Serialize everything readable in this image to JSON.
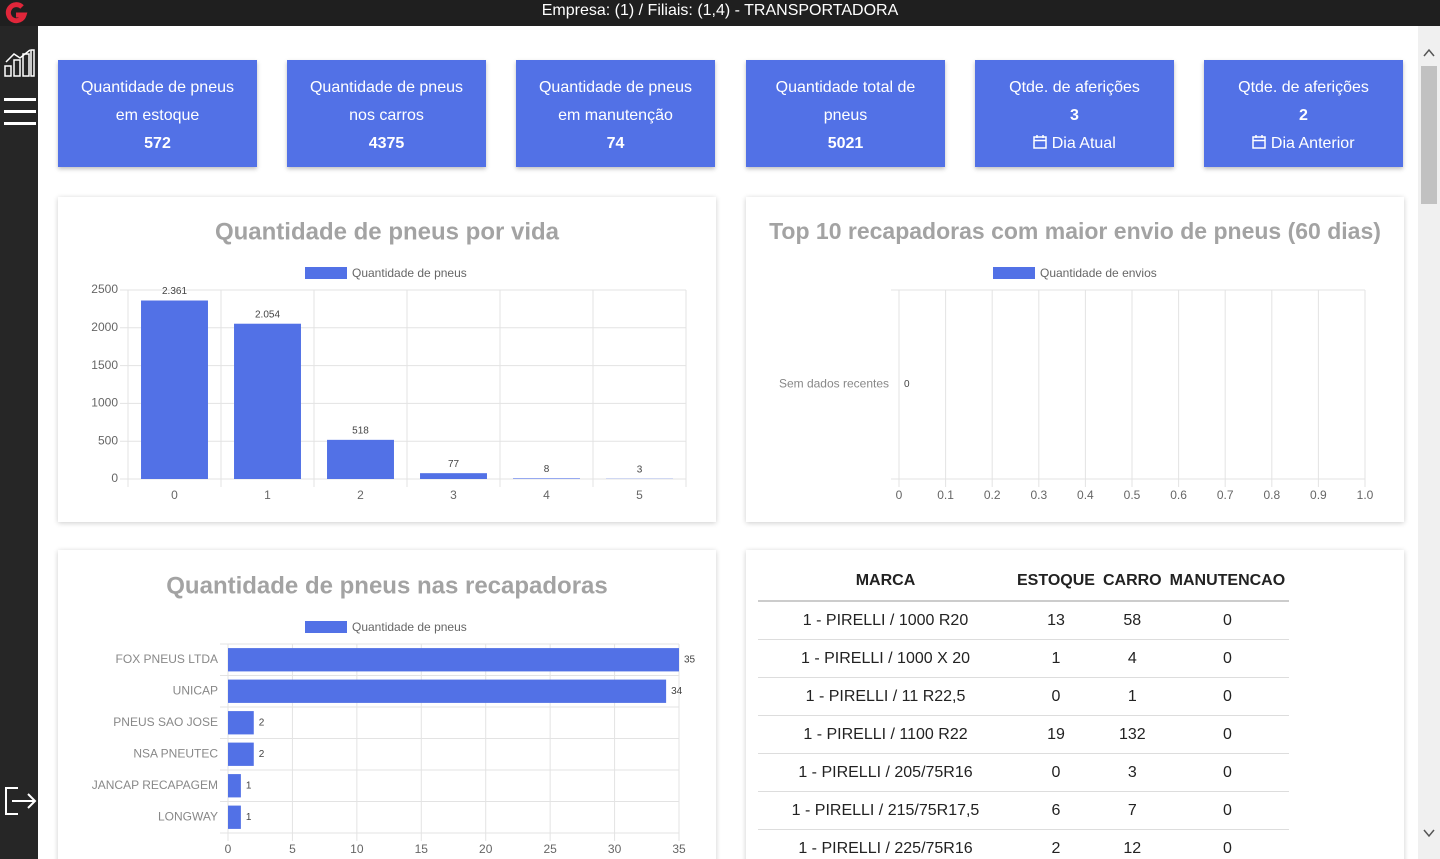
{
  "header": {
    "title": "Empresa: (1) / Filiais: (1,4) -  TRANSPORTADORA"
  },
  "cards": [
    {
      "label": "Quantidade de pneus em estoque",
      "value": 572
    },
    {
      "label": "Quantidade de pneus nos carros",
      "value": 4375
    },
    {
      "label": "Quantidade de pneus em manutenção",
      "value": 74
    },
    {
      "label": "Quantidade total de pneus",
      "value": 5021
    },
    {
      "label": "Qtde. de aferições",
      "value": 3,
      "note": "Dia Atual"
    },
    {
      "label": "Qtde. de aferições",
      "value": 2,
      "note": "Dia Anterior"
    }
  ],
  "chart_data": [
    {
      "type": "bar",
      "title": "Quantidade de pneus por vida",
      "categories": [
        "0",
        "1",
        "2",
        "3",
        "4",
        "5"
      ],
      "series": [
        {
          "name": "Quantidade de pneus",
          "color": "#5271e6",
          "values": [
            2361,
            2054,
            518,
            77,
            8,
            3
          ],
          "value_labels": [
            "2.361",
            "2.054",
            "518",
            "77",
            "8",
            "3"
          ]
        }
      ],
      "ylim": [
        0,
        2500
      ],
      "yticks": [
        0,
        500,
        1000,
        1500,
        2000,
        2500
      ],
      "grid": true,
      "legend": "top"
    },
    {
      "type": "barh",
      "title": "Top 10 recapadoras com maior envio de pneus (60 dias)",
      "categories": [
        "Sem dados recentes"
      ],
      "series": [
        {
          "name": "Quantidade de envios",
          "color": "#5271e6",
          "values": [
            0
          ]
        }
      ],
      "xlim": [
        0,
        1
      ],
      "xticks": [
        0,
        0.1,
        0.2,
        0.3,
        0.4,
        0.5,
        0.6,
        0.7,
        0.8,
        0.9,
        {
          "value": 1,
          "label": "1.0"
        }
      ],
      "grid": true,
      "legend": "top"
    },
    {
      "type": "barh",
      "title": "Quantidade de pneus nas recapadoras",
      "categories": [
        "FOX PNEUS LTDA",
        "UNICAP",
        "PNEUS SAO JOSE",
        "NSA PNEUTEC",
        "JANCAP RECAPAGEM",
        "LONGWAY"
      ],
      "series": [
        {
          "name": "Quantidade de pneus",
          "color": "#5271e6",
          "values": [
            35,
            34,
            2,
            2,
            1,
            1
          ]
        }
      ],
      "xlim": [
        0,
        35
      ],
      "xticks": [
        0,
        5,
        10,
        15,
        20,
        25,
        30,
        35
      ],
      "grid": true,
      "legend": "top"
    }
  ],
  "table": {
    "columns": [
      "MARCA",
      "ESTOQUE",
      "CARRO",
      "MANUTENCAO"
    ],
    "rows": [
      [
        "1 - PIRELLI / 1000 R20",
        13,
        58,
        0
      ],
      [
        "1 - PIRELLI / 1000 X 20",
        1,
        4,
        0
      ],
      [
        "1 - PIRELLI / 11 R22,5",
        0,
        1,
        0
      ],
      [
        "1 - PIRELLI / 1100 R22",
        19,
        132,
        0
      ],
      [
        "1 - PIRELLI / 205/75R16",
        0,
        3,
        0
      ],
      [
        "1 - PIRELLI / 215/75R17,5",
        6,
        7,
        0
      ],
      [
        "1 - PIRELLI / 225/75R16",
        2,
        12,
        0
      ]
    ]
  }
}
